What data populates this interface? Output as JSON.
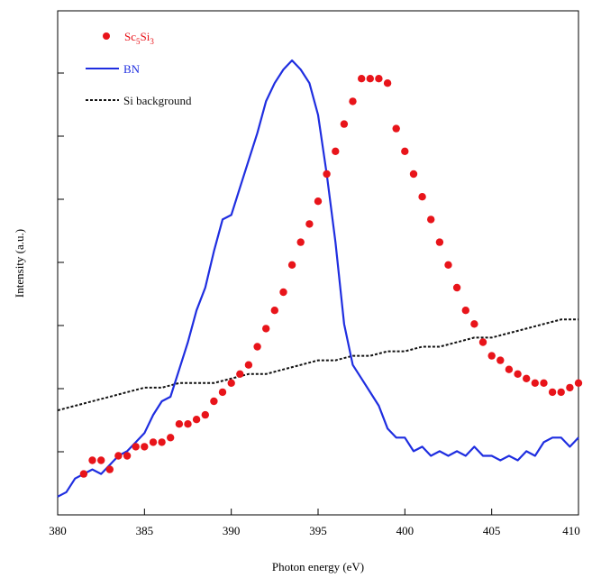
{
  "chart_data": {
    "type": "line",
    "title": "",
    "xlabel": "Photon energy (eV)",
    "ylabel": "Intensity (a.u.)",
    "xlim": [
      380,
      410
    ],
    "ylim": [
      0,
      1
    ],
    "xticks": [
      "380",
      "385",
      "390",
      "395",
      "400",
      "405",
      "410"
    ],
    "grid": false,
    "legend_position": "top-left",
    "series": [
      {
        "name_main": "Sc",
        "name_sub1": "5",
        "name_mid": "Si",
        "name_sub2": "3",
        "style": "markers",
        "color": "#e8141a",
        "x": [
          381.5,
          382,
          382.5,
          383,
          383.5,
          384,
          384.5,
          385,
          385.5,
          386,
          386.5,
          387,
          387.5,
          388,
          388.5,
          389,
          389.5,
          390,
          390.5,
          391,
          391.5,
          392,
          392.5,
          393,
          393.5,
          394,
          394.5,
          395,
          395.5,
          396,
          396.5,
          397,
          397.5,
          398,
          398.5,
          399,
          399.5,
          400,
          400.5,
          401,
          401.5,
          402,
          402.5,
          403,
          403.5,
          404,
          404.5,
          405,
          405.5,
          406,
          406.5,
          407,
          407.5,
          408,
          408.5,
          409,
          409.5,
          410
        ],
        "y": [
          0.09,
          0.12,
          0.12,
          0.1,
          0.13,
          0.13,
          0.15,
          0.15,
          0.16,
          0.16,
          0.17,
          0.2,
          0.2,
          0.21,
          0.22,
          0.25,
          0.27,
          0.29,
          0.31,
          0.33,
          0.37,
          0.41,
          0.45,
          0.49,
          0.55,
          0.6,
          0.64,
          0.69,
          0.75,
          0.8,
          0.86,
          0.91,
          0.96,
          0.96,
          0.96,
          0.95,
          0.85,
          0.8,
          0.75,
          0.7,
          0.65,
          0.6,
          0.55,
          0.5,
          0.45,
          0.42,
          0.38,
          0.35,
          0.34,
          0.32,
          0.31,
          0.3,
          0.29,
          0.29,
          0.27,
          0.27,
          0.28,
          0.29
        ]
      },
      {
        "name": "BN",
        "style": "solid",
        "color": "#1f2ee0",
        "x": [
          380,
          380.5,
          381,
          381.5,
          382,
          382.5,
          383,
          383.5,
          384,
          384.5,
          385,
          385.5,
          386,
          386.5,
          387,
          387.5,
          388,
          388.5,
          389,
          389.5,
          390,
          390.5,
          391,
          391.5,
          392,
          392.5,
          393,
          393.5,
          394,
          394.5,
          395,
          395.5,
          396,
          396.5,
          397,
          397.5,
          398,
          398.5,
          399,
          399.5,
          400,
          400.5,
          401,
          401.5,
          402,
          402.5,
          403,
          403.5,
          404,
          404.5,
          405,
          405.5,
          406,
          406.5,
          407,
          407.5,
          408,
          408.5,
          409,
          409.5,
          410
        ],
        "y": [
          0.04,
          0.05,
          0.08,
          0.09,
          0.1,
          0.09,
          0.11,
          0.13,
          0.14,
          0.16,
          0.18,
          0.22,
          0.25,
          0.26,
          0.32,
          0.38,
          0.45,
          0.5,
          0.58,
          0.65,
          0.66,
          0.72,
          0.78,
          0.84,
          0.91,
          0.95,
          0.98,
          1.0,
          0.98,
          0.95,
          0.88,
          0.75,
          0.6,
          0.42,
          0.33,
          0.3,
          0.27,
          0.24,
          0.19,
          0.17,
          0.17,
          0.14,
          0.15,
          0.13,
          0.14,
          0.13,
          0.14,
          0.13,
          0.15,
          0.13,
          0.13,
          0.12,
          0.13,
          0.12,
          0.14,
          0.13,
          0.16,
          0.17,
          0.17,
          0.15,
          0.17
        ]
      },
      {
        "name": "Si background",
        "style": "dashed",
        "color": "#111111",
        "x": [
          380,
          381,
          382,
          383,
          384,
          385,
          386,
          387,
          388,
          389,
          390,
          391,
          392,
          393,
          394,
          395,
          396,
          397,
          398,
          399,
          400,
          401,
          402,
          403,
          404,
          405,
          406,
          407,
          408,
          409,
          410
        ],
        "y": [
          0.23,
          0.24,
          0.25,
          0.26,
          0.27,
          0.28,
          0.28,
          0.29,
          0.29,
          0.29,
          0.3,
          0.31,
          0.31,
          0.32,
          0.33,
          0.34,
          0.34,
          0.35,
          0.35,
          0.36,
          0.36,
          0.37,
          0.37,
          0.38,
          0.39,
          0.39,
          0.4,
          0.41,
          0.42,
          0.43,
          0.43
        ]
      }
    ]
  }
}
